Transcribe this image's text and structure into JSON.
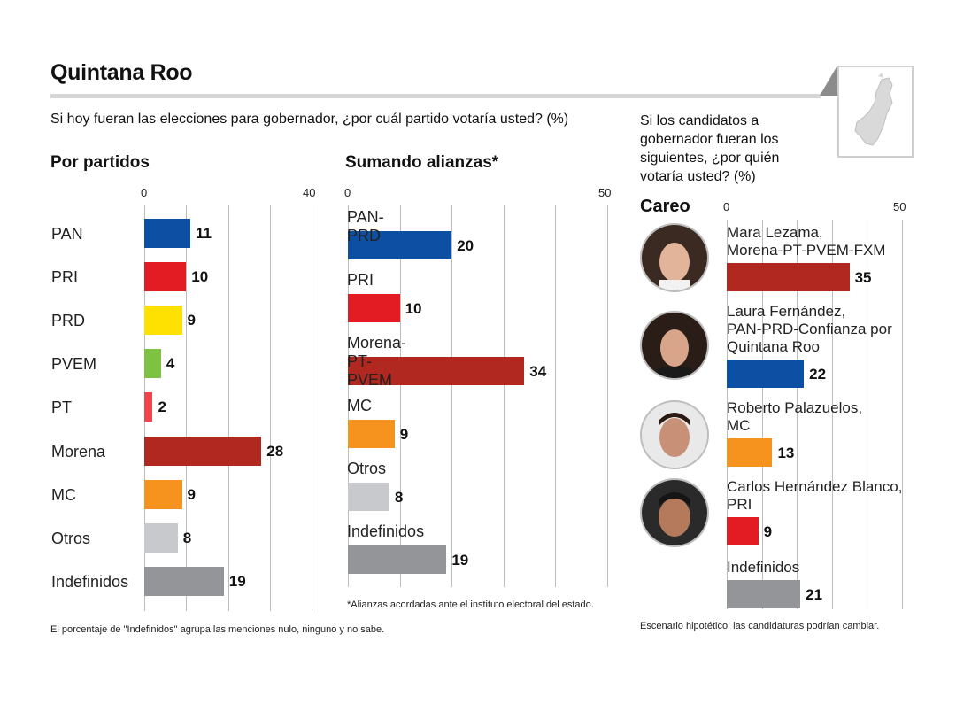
{
  "title": "Quintana Roo",
  "question": "Si hoy fueran las elecciones para gobernador, ¿por cuál partido votaría usted? (%)",
  "right_question": "Si los candidatos a gobernador fueran los siguientes, ¿por quién votaría usted? (%)",
  "sections": {
    "parties": "Por partidos",
    "alliances": "Sumando alianzas*",
    "matchup": "Careo"
  },
  "notes": {
    "parties": "El porcentaje de \"Indefinidos\" agrupa las menciones nulo, ninguno y no sabe.",
    "alliances": "*Alianzas acordadas ante el instituto electoral del estado.",
    "matchup": "Escenario hipotético; las candidaturas podrían cambiar."
  },
  "colors": {
    "pan": "#0d4fa3",
    "pri": "#e31b23",
    "prd": "#ffe100",
    "pvem": "#7dc242",
    "pt": "#f2454b",
    "morena": "#b0281f",
    "mc": "#f6921e",
    "otros": "#c8c9cc",
    "indef": "#939598"
  },
  "chart_data": [
    {
      "type": "bar",
      "name": "Por partidos",
      "xlim": [
        0,
        40
      ],
      "ticks": [
        "0",
        "40"
      ],
      "categories": [
        "PAN",
        "PRI",
        "PRD",
        "PVEM",
        "PT",
        "Morena",
        "MC",
        "Otros",
        "Indefinidos"
      ],
      "values": [
        11,
        10,
        9,
        4,
        2,
        28,
        9,
        8,
        19
      ],
      "colors": [
        "#0d4fa3",
        "#e31b23",
        "#ffe100",
        "#7dc242",
        "#f2454b",
        "#b0281f",
        "#f6921e",
        "#c8c9cc",
        "#939598"
      ]
    },
    {
      "type": "bar",
      "name": "Sumando alianzas*",
      "xlim": [
        0,
        50
      ],
      "ticks": [
        "0",
        "50"
      ],
      "categories": [
        "PAN-PRD",
        "PRI",
        "Morena-PT-PVEM",
        "MC",
        "Otros",
        "Indefinidos"
      ],
      "values": [
        20,
        10,
        34,
        9,
        8,
        19
      ],
      "colors": [
        "#0d4fa3",
        "#e31b23",
        "#b0281f",
        "#f6921e",
        "#c8c9cc",
        "#939598"
      ]
    },
    {
      "type": "bar",
      "name": "Careo",
      "xlim": [
        0,
        50
      ],
      "ticks": [
        "0",
        "50"
      ],
      "categories": [
        [
          "Mara Lezama,",
          "Morena-PT-PVEM-FXM"
        ],
        [
          "Laura Fernández,",
          "PAN-PRD-Confianza por",
          "Quintana Roo"
        ],
        [
          "Roberto Palazuelos,",
          "MC"
        ],
        [
          "Carlos Hernández Blanco,",
          "PRI"
        ],
        [
          "Indefinidos"
        ]
      ],
      "values": [
        35,
        22,
        13,
        9,
        21
      ],
      "colors": [
        "#b0281f",
        "#0d4fa3",
        "#f6921e",
        "#e31b23",
        "#939598"
      ]
    }
  ]
}
